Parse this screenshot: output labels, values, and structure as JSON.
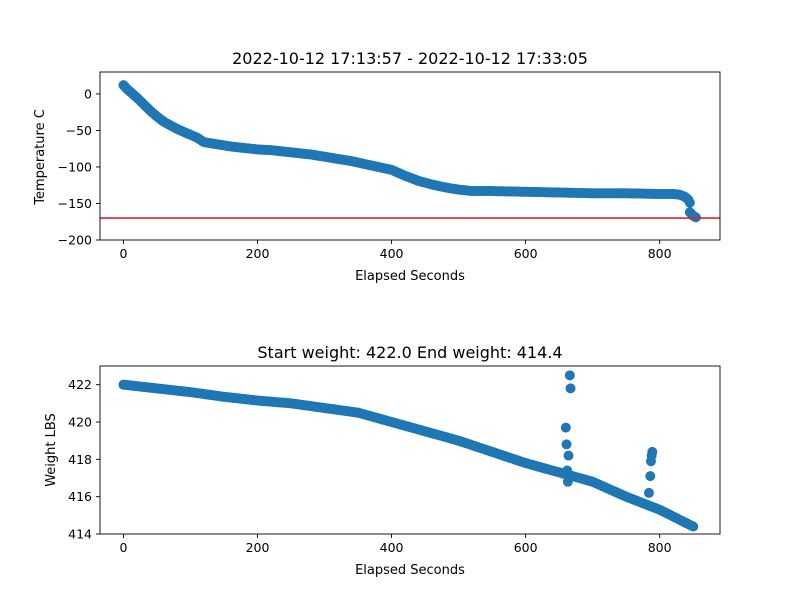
{
  "chart_data": [
    {
      "type": "scatter",
      "title": "2022-10-12 17:13:57 - 2022-10-12 17:33:05",
      "xlabel": "Elapsed Seconds",
      "ylabel": "Temperature C",
      "xlim": [
        -35,
        890
      ],
      "ylim": [
        -200,
        30
      ],
      "xticks": [
        0,
        200,
        400,
        600,
        800
      ],
      "yticks": [
        0,
        -50,
        -100,
        -150,
        -200
      ],
      "marker_color": "#1f77b4",
      "hline": {
        "y": -170,
        "color": "#d62728"
      },
      "curve": [
        [
          0,
          12
        ],
        [
          5,
          7
        ],
        [
          10,
          3
        ],
        [
          20,
          -5
        ],
        [
          30,
          -14
        ],
        [
          40,
          -23
        ],
        [
          50,
          -31
        ],
        [
          60,
          -38
        ],
        [
          70,
          -43
        ],
        [
          80,
          -48
        ],
        [
          90,
          -52
        ],
        [
          100,
          -56
        ],
        [
          110,
          -60
        ],
        [
          120,
          -66
        ],
        [
          140,
          -69
        ],
        [
          160,
          -72
        ],
        [
          180,
          -74
        ],
        [
          200,
          -76
        ],
        [
          220,
          -77
        ],
        [
          240,
          -79
        ],
        [
          260,
          -81
        ],
        [
          280,
          -83
        ],
        [
          300,
          -86
        ],
        [
          320,
          -89
        ],
        [
          340,
          -92
        ],
        [
          360,
          -96
        ],
        [
          380,
          -100
        ],
        [
          400,
          -104
        ],
        [
          420,
          -112
        ],
        [
          440,
          -119
        ],
        [
          460,
          -124
        ],
        [
          480,
          -128
        ],
        [
          500,
          -131
        ],
        [
          520,
          -133
        ],
        [
          550,
          -133
        ],
        [
          600,
          -134
        ],
        [
          650,
          -135
        ],
        [
          700,
          -136
        ],
        [
          750,
          -136
        ],
        [
          800,
          -137
        ],
        [
          820,
          -137
        ],
        [
          830,
          -138
        ],
        [
          838,
          -141
        ],
        [
          843,
          -145
        ],
        [
          845,
          -149
        ]
      ],
      "extra_points": [
        [
          845,
          -162
        ],
        [
          848,
          -165
        ],
        [
          850,
          -167
        ],
        [
          852,
          -168
        ],
        [
          854,
          -169
        ]
      ]
    },
    {
      "type": "scatter",
      "title": "Start weight: 422.0 End weight: 414.4",
      "xlabel": "Elapsed Seconds",
      "ylabel": "Weight LBS",
      "xlim": [
        -35,
        890
      ],
      "ylim": [
        414,
        423
      ],
      "xticks": [
        0,
        200,
        400,
        600,
        800
      ],
      "yticks": [
        414,
        416,
        418,
        420,
        422
      ],
      "marker_color": "#1f77b4",
      "curve": [
        [
          0,
          422.0
        ],
        [
          50,
          421.8
        ],
        [
          100,
          421.6
        ],
        [
          150,
          421.35
        ],
        [
          200,
          421.15
        ],
        [
          250,
          421.0
        ],
        [
          300,
          420.75
        ],
        [
          350,
          420.5
        ],
        [
          400,
          420.0
        ],
        [
          450,
          419.5
        ],
        [
          500,
          419.0
        ],
        [
          550,
          418.4
        ],
        [
          600,
          417.8
        ],
        [
          650,
          417.3
        ],
        [
          700,
          416.8
        ],
        [
          750,
          416.0
        ],
        [
          800,
          415.3
        ],
        [
          850,
          414.4
        ]
      ],
      "extra_points": [
        [
          660,
          419.7
        ],
        [
          661,
          418.8
        ],
        [
          662,
          417.4
        ],
        [
          663,
          416.8
        ],
        [
          664,
          418.2
        ],
        [
          666,
          422.5
        ],
        [
          667,
          421.8
        ],
        [
          784,
          416.2
        ],
        [
          786,
          417.1
        ],
        [
          787,
          417.9
        ],
        [
          788,
          418.2
        ],
        [
          789,
          418.4
        ]
      ]
    }
  ]
}
